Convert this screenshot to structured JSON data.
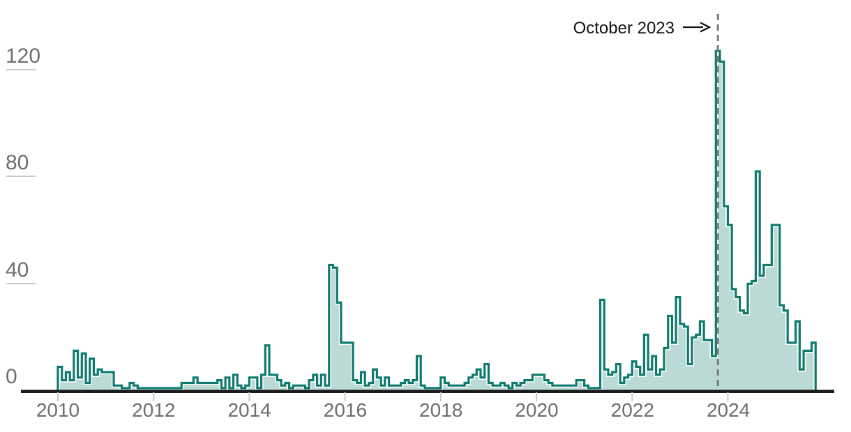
{
  "annotation": {
    "label": "October 2023",
    "points_to_month": "2023-10"
  },
  "y_axis": {
    "tick_labels": [
      "120",
      "80",
      "40",
      "0"
    ]
  },
  "x_axis": {
    "tick_labels": [
      "2010",
      "2012",
      "2014",
      "2016",
      "2018",
      "2020",
      "2022",
      "2024"
    ]
  },
  "colors": {
    "line": "#0e7a6e",
    "fill": "#bcdad5",
    "dashed_line": "#7a7a7a",
    "axis_text": "#6e6e6e",
    "axis_line": "#1a1a1a",
    "tick_line": "#c9c9c9",
    "annotation_text": "#141414"
  },
  "chart_data": {
    "type": "area",
    "subtype": "monthly-step",
    "title": "",
    "xlabel": "",
    "ylabel": "",
    "legend": "none",
    "grid": "off",
    "start_month": "2010-01",
    "end_month": "2025-10",
    "frequency": "monthly",
    "yticks": [
      0,
      40,
      80,
      120
    ],
    "xticks": [
      2010,
      2012,
      2014,
      2016,
      2018,
      2020,
      2022,
      2024
    ],
    "ylim": [
      0,
      130
    ],
    "annotation": {
      "text": "October 2023",
      "month": "2023-10",
      "value": 127
    },
    "values": [
      9,
      4,
      7,
      4,
      15,
      5,
      14,
      3,
      12,
      6,
      8,
      7,
      7,
      7,
      2,
      2,
      1,
      1,
      3,
      2,
      1,
      1,
      1,
      1,
      1,
      1,
      1,
      1,
      1,
      1,
      1,
      3,
      3,
      3,
      5,
      3,
      3,
      3,
      3,
      3,
      4,
      1,
      5,
      1,
      6,
      2,
      1,
      2,
      5,
      5,
      1,
      6,
      17,
      6,
      6,
      4,
      2,
      3,
      1,
      2,
      2,
      2,
      1,
      4,
      6,
      2,
      6,
      2,
      47,
      46,
      33,
      18,
      18,
      18,
      4,
      3,
      7,
      2,
      3,
      8,
      5,
      2,
      5,
      2,
      2,
      2,
      3,
      4,
      3,
      4,
      13,
      2,
      1,
      1,
      1,
      1,
      5,
      3,
      2,
      2,
      2,
      2,
      3,
      5,
      6,
      8,
      5,
      10,
      3,
      2,
      2,
      3,
      2,
      1,
      3,
      2,
      3,
      4,
      4,
      6,
      6,
      6,
      4,
      3,
      2,
      2,
      2,
      2,
      2,
      2,
      4,
      4,
      2,
      1,
      1,
      1,
      34,
      8,
      6,
      7,
      10,
      3,
      5,
      6,
      11,
      9,
      6,
      21,
      8,
      13,
      6,
      8,
      16,
      28,
      18,
      35,
      25,
      24,
      10,
      20,
      21,
      26,
      19,
      19,
      13,
      127,
      123,
      69,
      62,
      38,
      35,
      30,
      29,
      40,
      41,
      82,
      43,
      47,
      47,
      62,
      62,
      32,
      30,
      18,
      18,
      26,
      8,
      15,
      15,
      18
    ]
  }
}
